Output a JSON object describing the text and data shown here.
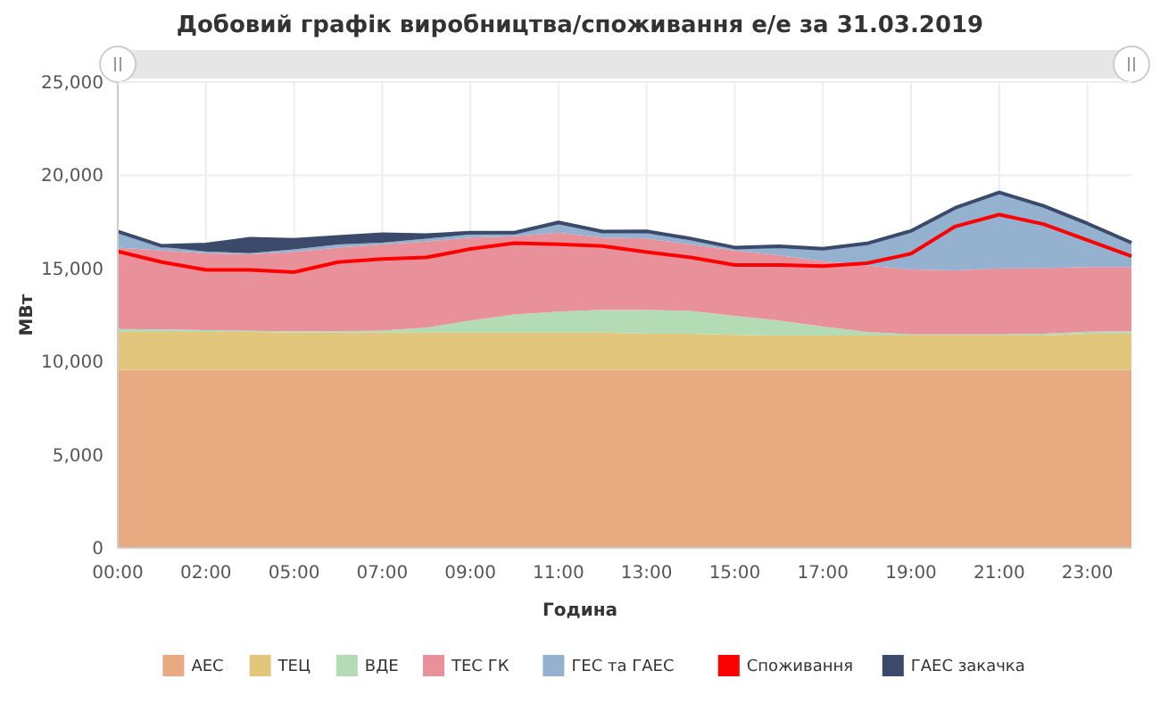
{
  "chart_data": {
    "type": "area",
    "stacked": true,
    "title": "Добовий графік виробництва/споживання е/е за 31.03.2019",
    "xlabel": "Година",
    "ylabel": "МВт",
    "categories": [
      "00:00",
      null,
      "02:00",
      null,
      "05:00",
      null,
      "07:00",
      null,
      "09:00",
      null,
      "11:00",
      null,
      "13:00",
      null,
      "15:00",
      null,
      "17:00",
      null,
      "19:00",
      null,
      "21:00",
      null,
      "23:00",
      null
    ],
    "ylim": [
      0,
      25000
    ],
    "yticks": [
      {
        "value": 0,
        "label": "0"
      },
      {
        "value": 5000,
        "label": "5,000"
      },
      {
        "value": 10000,
        "label": "10,000"
      },
      {
        "value": 15000,
        "label": "15,000"
      },
      {
        "value": 20000,
        "label": "20,000"
      },
      {
        "value": 25000,
        "label": "25,000"
      }
    ],
    "grid": true,
    "legend": "bottom",
    "series": [
      {
        "name": "АЕС",
        "color": "#e8aa80",
        "values": [
          9550,
          9550,
          9550,
          9550,
          9550,
          9550,
          9550,
          9550,
          9550,
          9550,
          9550,
          9550,
          9550,
          9550,
          9550,
          9550,
          9550,
          9550,
          9550,
          9550,
          9550,
          9550,
          9550,
          9550
        ]
      },
      {
        "name": "ТЕЦ",
        "color": "#e2c67c",
        "values": [
          2040,
          2040,
          2040,
          2040,
          2010,
          2010,
          2010,
          2010,
          2010,
          2010,
          2010,
          2010,
          1950,
          1950,
          1880,
          1850,
          1850,
          1850,
          1850,
          1850,
          1850,
          1850,
          1950,
          1950
        ]
      },
      {
        "name": "ВДЕ",
        "color": "#b3dcb5",
        "values": [
          160,
          130,
          100,
          60,
          60,
          60,
          100,
          260,
          640,
          960,
          1120,
          1210,
          1280,
          1210,
          1020,
          800,
          480,
          190,
          60,
          60,
          60,
          100,
          100,
          130
        ]
      },
      {
        "name": "ТЕС ГК",
        "color": "#e8919b",
        "values": [
          4370,
          4240,
          4110,
          4110,
          4270,
          4500,
          4620,
          4620,
          4460,
          4210,
          4240,
          3890,
          3830,
          3570,
          3510,
          3510,
          3510,
          3570,
          3480,
          3440,
          3540,
          3510,
          3480,
          3440
        ]
      },
      {
        "name": "ГЕС та ГАЕС",
        "color": "#94b2d0",
        "values": [
          800,
          190,
          100,
          60,
          130,
          160,
          100,
          160,
          160,
          130,
          450,
          320,
          380,
          320,
          160,
          480,
          670,
          1180,
          2070,
          3350,
          4080,
          3350,
          2330,
          1310
        ]
      },
      {
        "name": "Споживання",
        "color": "#ff0000",
        "type": "line",
        "values": [
          15910,
          15340,
          14920,
          14920,
          14800,
          15340,
          15500,
          15590,
          16040,
          16360,
          16300,
          16200,
          15880,
          15590,
          15180,
          15180,
          15120,
          15280,
          15790,
          17250,
          17890,
          17380,
          16520,
          15660
        ]
      },
      {
        "name": "ГАЕС закачка",
        "color": "#3b4a6b",
        "values": [
          60,
          60,
          380,
          770,
          510,
          410,
          450,
          190,
          100,
          60,
          100,
          0,
          0,
          0,
          0,
          0,
          0,
          0,
          0,
          0,
          0,
          0,
          0,
          0
        ]
      }
    ]
  }
}
